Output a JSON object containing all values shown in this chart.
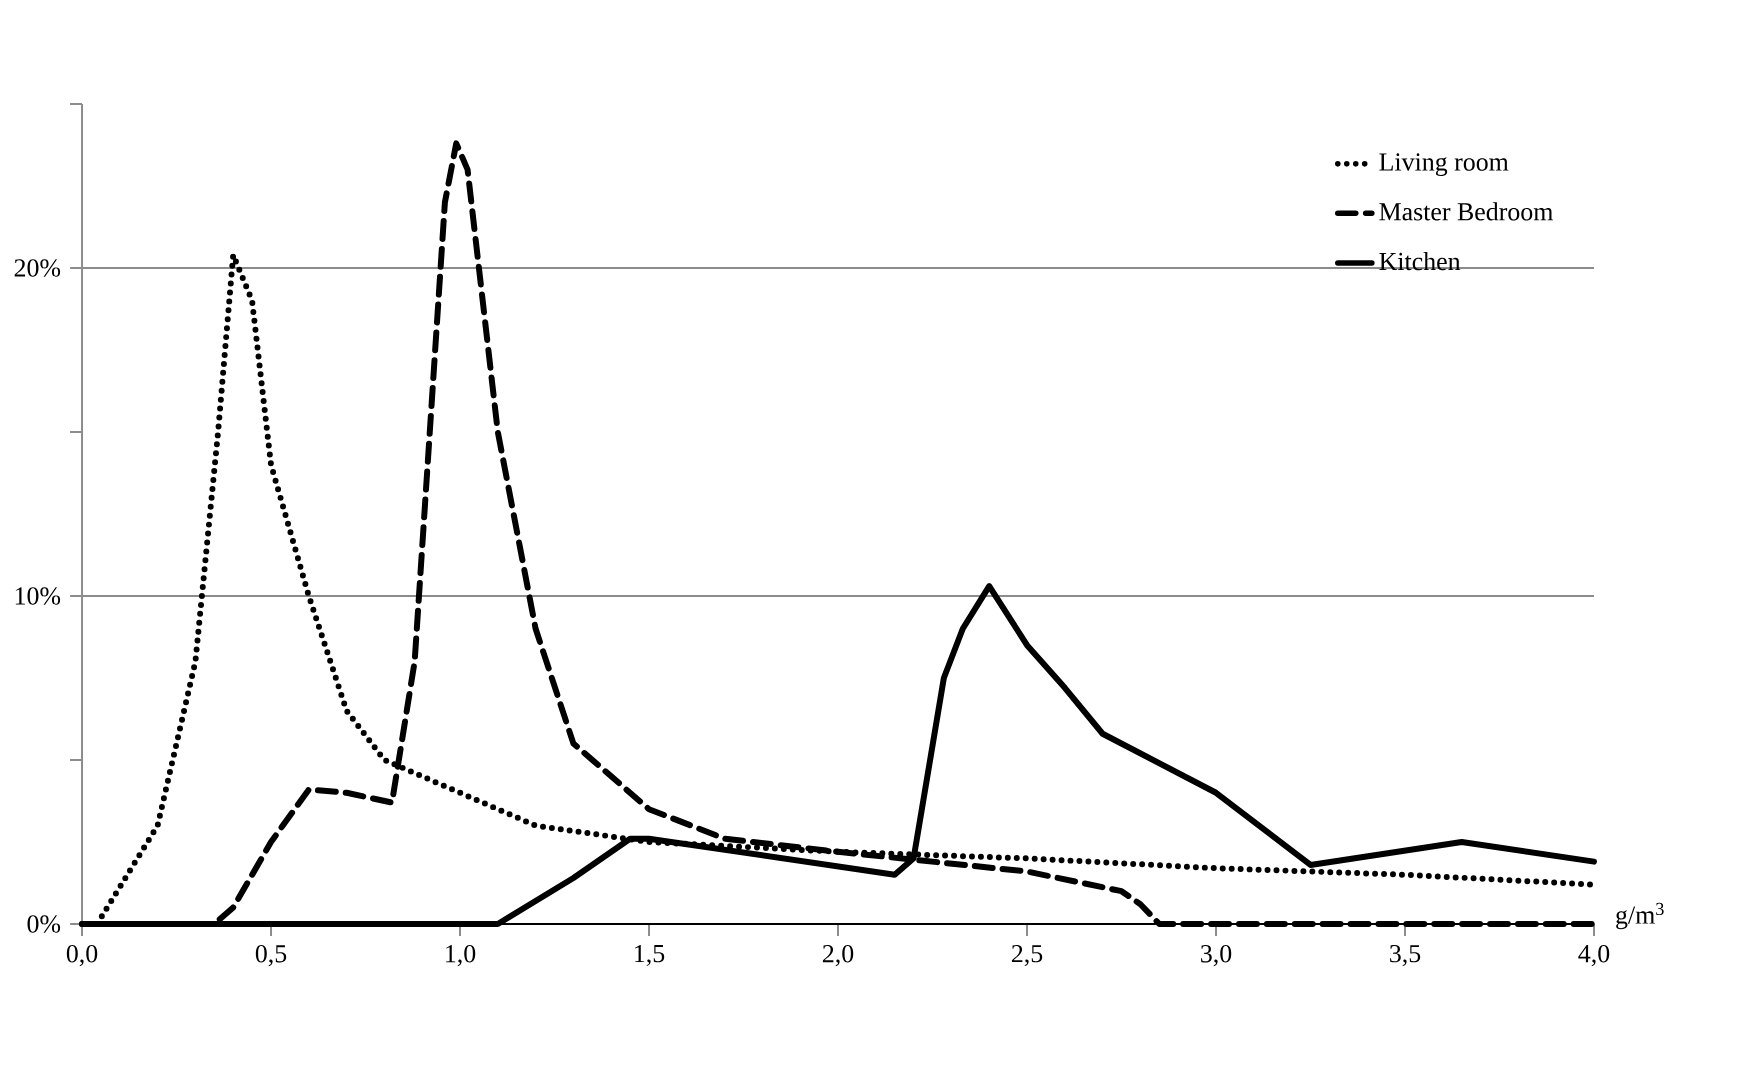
{
  "chart_data": {
    "type": "line",
    "xlabel": "g/m$^{3}$",
    "xlim": [
      0,
      4.0
    ],
    "xticks": [
      {
        "value": 0,
        "label": "0,0"
      },
      {
        "value": 0.5,
        "label": "0,5"
      },
      {
        "value": 1.0,
        "label": "1,0"
      },
      {
        "value": 1.5,
        "label": "1,5"
      },
      {
        "value": 2.0,
        "label": "2,0"
      },
      {
        "value": 2.5,
        "label": "2,5"
      },
      {
        "value": 3.0,
        "label": "3,0"
      },
      {
        "value": 3.5,
        "label": "3,5"
      },
      {
        "value": 4.0,
        "label": "4,0"
      }
    ],
    "ylim": [
      0,
      25
    ],
    "yticks": [
      {
        "value": 0,
        "label": "0%"
      },
      {
        "value": 5,
        "label": null
      },
      {
        "value": 10,
        "label": "10%"
      },
      {
        "value": 15,
        "label": null
      },
      {
        "value": 20,
        "label": "20%"
      },
      {
        "value": 25,
        "label": null
      }
    ],
    "grid": "y",
    "legend": "top right",
    "marker": "none",
    "series": [
      {
        "name": "Living room",
        "color": "#000000",
        "line_style": "dotted",
        "x": [
          0.04,
          0.2,
          0.3,
          0.36,
          0.4,
          0.45,
          0.5,
          0.6,
          0.7,
          0.8,
          1.0,
          1.2,
          1.5,
          2.0,
          2.5,
          3.0,
          3.5,
          4.0
        ],
        "values": [
          0,
          3,
          8,
          15,
          20.4,
          19,
          14,
          10,
          6.5,
          5,
          4,
          3,
          2.5,
          2.2,
          2.0,
          1.7,
          1.5,
          1.2
        ]
      },
      {
        "name": "Master Bedroom",
        "color": "#000000",
        "line_style": "dashed",
        "x": [
          0,
          0.35,
          0.4,
          0.5,
          0.6,
          0.7,
          0.82,
          0.88,
          0.92,
          0.96,
          0.99,
          1.02,
          1.05,
          1.1,
          1.2,
          1.3,
          1.5,
          1.7,
          2.0,
          2.5,
          2.75,
          2.8,
          2.85,
          4.0
        ],
        "values": [
          0,
          0,
          0.5,
          2.5,
          4.1,
          4.0,
          3.7,
          8,
          15,
          22,
          23.8,
          23,
          20,
          15,
          9,
          5.5,
          3.5,
          2.6,
          2.2,
          1.6,
          1.0,
          0.6,
          0,
          0
        ]
      },
      {
        "name": "Kitchen",
        "color": "#000000",
        "line_style": "solid",
        "x": [
          0,
          1.1,
          1.3,
          1.45,
          1.5,
          2.15,
          2.2,
          2.28,
          2.33,
          2.4,
          2.5,
          2.6,
          2.7,
          3.0,
          3.25,
          3.65,
          4.0
        ],
        "values": [
          0,
          0,
          1.4,
          2.6,
          2.6,
          1.5,
          2.0,
          7.5,
          9.0,
          10.3,
          8.5,
          7.2,
          5.8,
          4.0,
          1.8,
          2.5,
          1.9
        ]
      }
    ]
  }
}
